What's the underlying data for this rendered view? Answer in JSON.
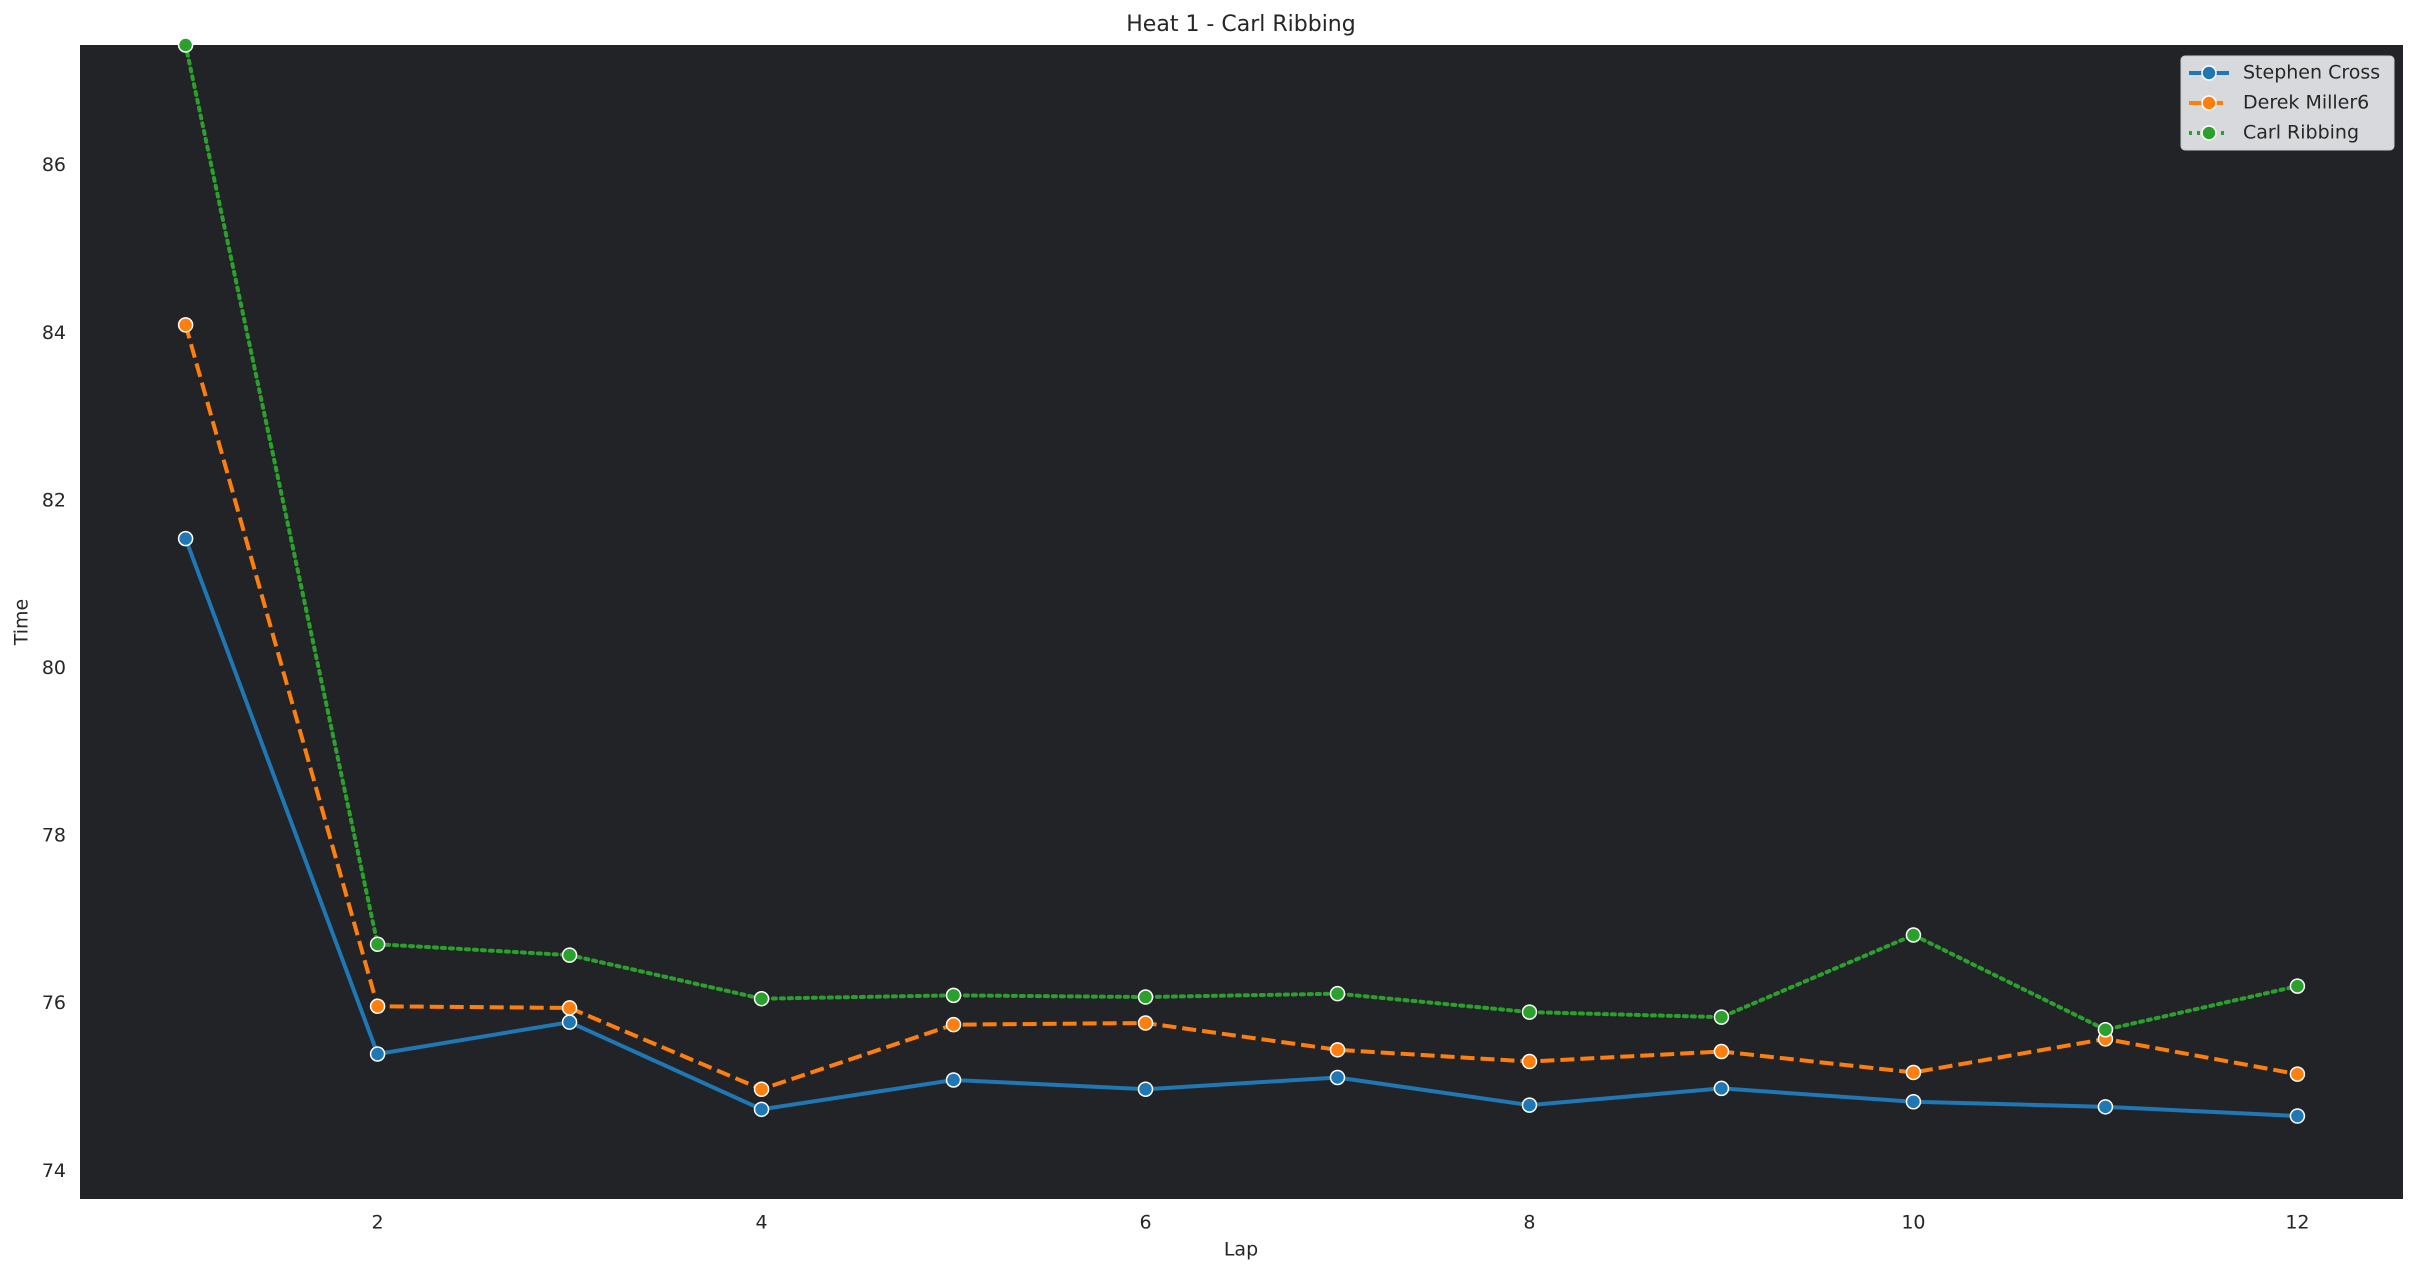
{
  "chart_data": {
    "type": "line",
    "title": "Heat 1 - Carl Ribbing",
    "xlabel": "Lap",
    "ylabel": "Time",
    "x": [
      1,
      2,
      3,
      4,
      5,
      6,
      7,
      8,
      9,
      10,
      11,
      12
    ],
    "series": [
      {
        "name": "Stephen Cross",
        "color": "#1f77b4",
        "linestyle": "solid",
        "values": [
          81.55,
          75.4,
          75.78,
          74.74,
          75.09,
          74.98,
          75.12,
          74.79,
          74.99,
          74.83,
          74.77,
          74.66
        ]
      },
      {
        "name": "Derek Miller6",
        "color": "#ff7f0e",
        "linestyle": "dashed",
        "values": [
          84.1,
          75.97,
          75.95,
          74.98,
          75.75,
          75.77,
          75.45,
          75.31,
          75.43,
          75.18,
          75.58,
          75.16
        ]
      },
      {
        "name": "Carl Ribbing",
        "color": "#2ca02c",
        "linestyle": "dotted",
        "values": [
          87.44,
          76.71,
          76.58,
          76.06,
          76.1,
          76.08,
          76.12,
          75.9,
          75.84,
          76.82,
          75.69,
          76.21
        ]
      }
    ],
    "xlim": [
      0.45,
      12.55
    ],
    "xticks": [
      2,
      4,
      6,
      8,
      10,
      12
    ],
    "ylim": [
      73.67,
      87.44
    ],
    "yticks": [
      74,
      76,
      78,
      80,
      82,
      84,
      86
    ],
    "grid": false,
    "legend": "upper right",
    "background": "#212327"
  }
}
